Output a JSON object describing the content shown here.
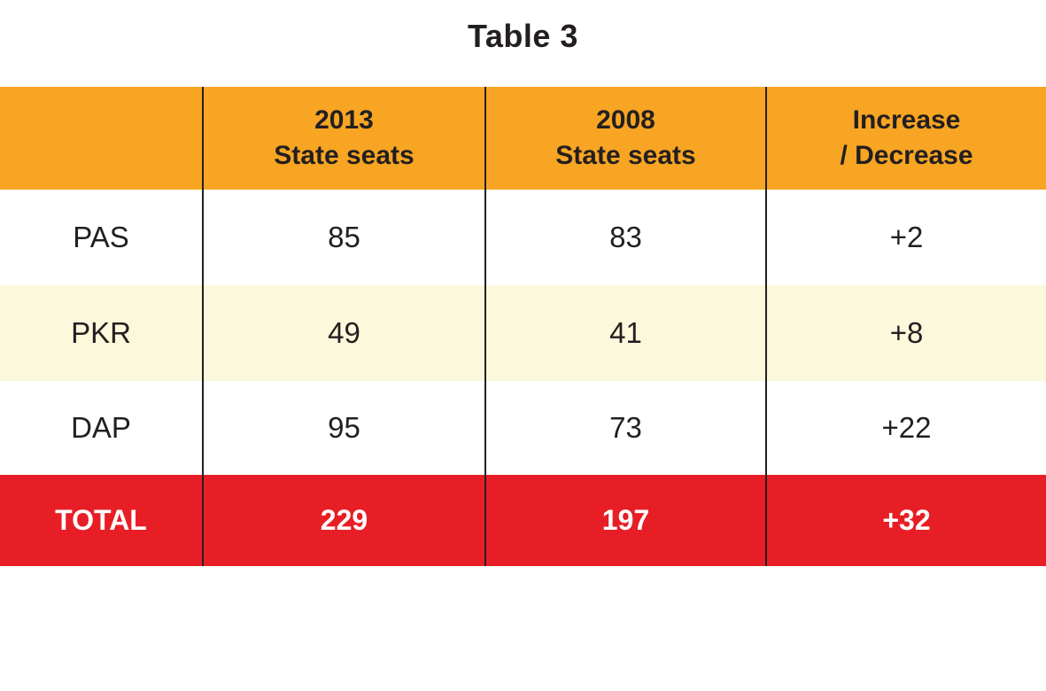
{
  "title": "Table 3",
  "colors": {
    "header_bg": "#F7A522",
    "stripe_bg": "#FCF8DB",
    "total_bg": "#E81E26",
    "divider": "#231F20",
    "text": "#231F20",
    "total_text": "#FFFFFF"
  },
  "table": {
    "headers": [
      {
        "line1": "",
        "line2": ""
      },
      {
        "line1": "2013",
        "line2": "State seats"
      },
      {
        "line1": "2008",
        "line2": "State seats"
      },
      {
        "line1": "Increase",
        "line2": "/ Decrease"
      }
    ],
    "rows": [
      {
        "party": "PAS",
        "seats_2013": "85",
        "seats_2008": "83",
        "change": "+2"
      },
      {
        "party": "PKR",
        "seats_2013": "49",
        "seats_2008": "41",
        "change": "+8"
      },
      {
        "party": "DAP",
        "seats_2013": "95",
        "seats_2008": "73",
        "change": "+22"
      }
    ],
    "total": {
      "label": "TOTAL",
      "seats_2013": "229",
      "seats_2008": "197",
      "change": "+32"
    }
  },
  "chart_data": {
    "type": "table",
    "title": "Table 3",
    "columns": [
      "",
      "2013 State seats",
      "2008 State seats",
      "Increase / Decrease"
    ],
    "rows": [
      [
        "PAS",
        85,
        83,
        "+2"
      ],
      [
        "PKR",
        49,
        41,
        "+8"
      ],
      [
        "DAP",
        95,
        73,
        "+22"
      ],
      [
        "TOTAL",
        229,
        197,
        "+32"
      ]
    ]
  }
}
